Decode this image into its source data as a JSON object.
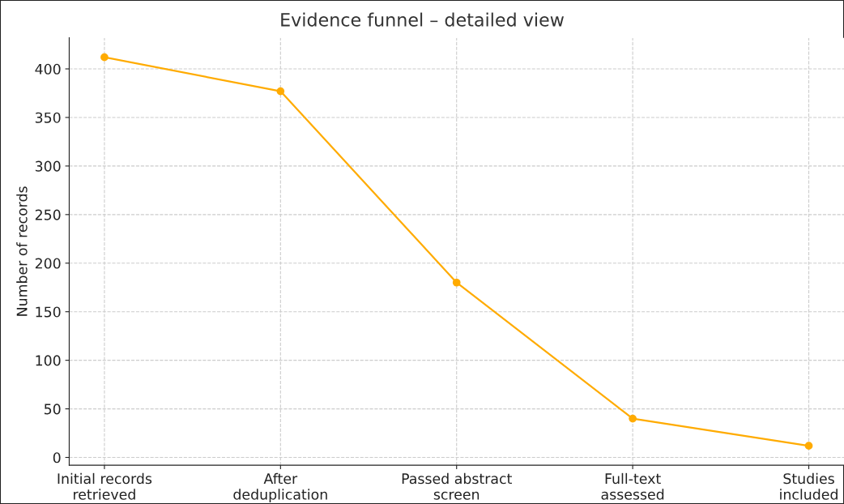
{
  "chart_data": {
    "type": "line",
    "title": "Evidence funnel – detailed view",
    "ylabel": "Number of records",
    "categories": [
      "Initial records\nretrieved",
      "After\ndeduplication",
      "Passed abstract\nscreen",
      "Full-text\nassessed",
      "Studies\nincluded"
    ],
    "values": [
      412,
      377,
      180,
      40,
      12
    ],
    "color": "#ffab00",
    "marker": "circle",
    "line_style": "solid",
    "ylim": [
      -8,
      432
    ],
    "yticks": [
      0,
      50,
      100,
      150,
      200,
      250,
      300,
      350,
      400
    ],
    "grid": true
  }
}
